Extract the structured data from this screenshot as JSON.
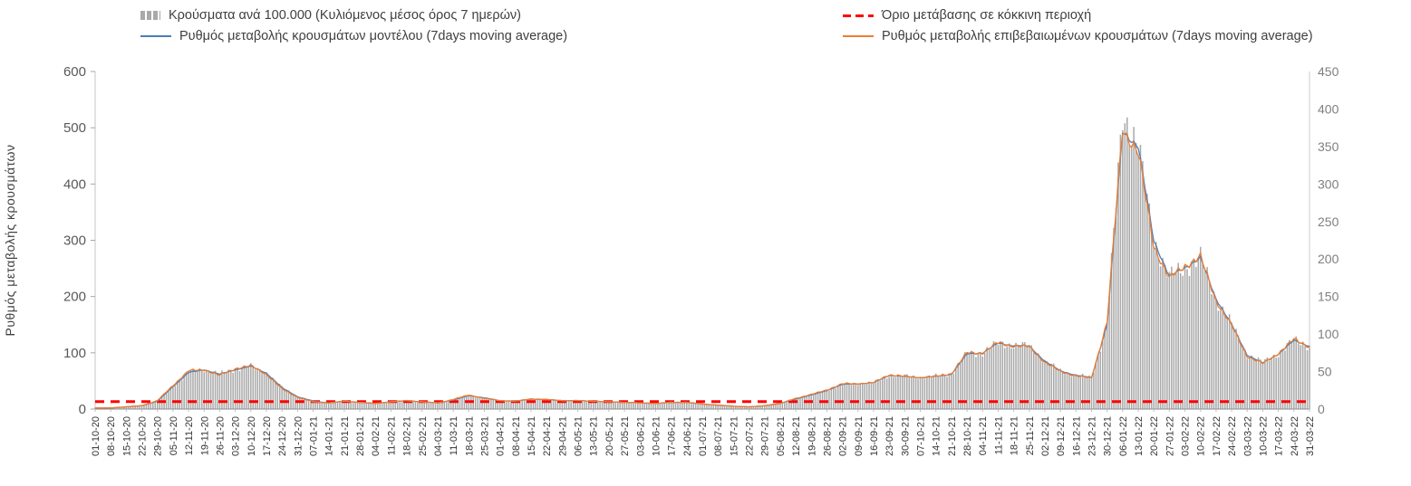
{
  "chart_data": {
    "type": "bar+line",
    "title": "",
    "y_axis_left": {
      "label": "Ρυθμός μεταβολής κρουσμάτων",
      "min": 0,
      "max": 600,
      "ticks": [
        0,
        100,
        200,
        300,
        400,
        500,
        600
      ]
    },
    "y_axis_right": {
      "min": 0,
      "max": 450,
      "ticks": [
        0,
        50,
        100,
        150,
        200,
        250,
        300,
        350,
        400,
        450
      ]
    },
    "threshold": {
      "label": "Όριο μετάβασης σε κόκκινη περιοχή",
      "value": 10,
      "axis": "right",
      "color": "#ff0000"
    },
    "categories": [
      "01-10-20",
      "08-10-20",
      "15-10-20",
      "22-10-20",
      "29-10-20",
      "05-11-20",
      "12-11-20",
      "19-11-20",
      "26-11-20",
      "03-12-20",
      "10-12-20",
      "17-12-20",
      "24-12-20",
      "31-12-20",
      "07-01-21",
      "14-01-21",
      "21-01-21",
      "28-01-21",
      "04-02-21",
      "11-02-21",
      "18-02-21",
      "25-02-21",
      "04-03-21",
      "11-03-21",
      "18-03-21",
      "25-03-21",
      "01-04-21",
      "08-04-21",
      "15-04-21",
      "22-04-21",
      "29-04-21",
      "06-05-21",
      "13-05-21",
      "20-05-21",
      "27-05-21",
      "03-06-21",
      "10-06-21",
      "17-06-21",
      "24-06-21",
      "01-07-21",
      "08-07-21",
      "15-07-21",
      "22-07-21",
      "29-07-21",
      "05-08-21",
      "12-08-21",
      "19-08-21",
      "26-08-21",
      "02-09-21",
      "09-09-21",
      "16-09-21",
      "23-09-21",
      "30-09-21",
      "07-10-21",
      "14-10-21",
      "21-10-21",
      "28-10-21",
      "04-11-21",
      "11-11-21",
      "18-11-21",
      "25-11-21",
      "02-12-21",
      "09-12-21",
      "16-12-21",
      "23-12-21",
      "30-12-21",
      "06-01-22",
      "13-01-22",
      "20-01-22",
      "27-01-22",
      "03-02-22",
      "10-02-22",
      "17-02-22",
      "24-02-22",
      "03-03-22",
      "10-03-22",
      "17-03-22",
      "24-03-22",
      "31-03-22"
    ],
    "bars": {
      "name": "Κρούσματα ανά 100.000 (Κυλιόμενος μέσος όρος 7 ημερών)",
      "axis": "right",
      "color": "#a9a9a9",
      "values": [
        2,
        2,
        3,
        5,
        11,
        30,
        49,
        53,
        47,
        53,
        57,
        48,
        29,
        17,
        11,
        8,
        11,
        9,
        8,
        10,
        11,
        10,
        8,
        12,
        18,
        15,
        11,
        11,
        14,
        13,
        11,
        11,
        11,
        10,
        9,
        8,
        8,
        9,
        9,
        7,
        5,
        4,
        3,
        5,
        8,
        14,
        19,
        25,
        33,
        34,
        35,
        45,
        44,
        42,
        44,
        47,
        74,
        75,
        88,
        85,
        84,
        64,
        51,
        45,
        42,
        113,
        395,
        350,
        225,
        176,
        189,
        201,
        147,
        113,
        72,
        62,
        74,
        92,
        84
      ]
    },
    "series": [
      {
        "name": "Ρυθμός μεταβολής κρουσμάτων μοντέλου (7days moving average)",
        "axis": "left",
        "color": "#4a7ebb",
        "values": [
          2,
          2,
          4,
          6,
          14,
          40,
          65,
          70,
          62,
          70,
          76,
          64,
          38,
          22,
          14,
          11,
          14,
          12,
          10,
          13,
          15,
          13,
          11,
          16,
          24,
          20,
          15,
          14,
          18,
          17,
          15,
          15,
          14,
          13,
          12,
          11,
          10,
          12,
          12,
          9,
          7,
          5,
          4,
          6,
          10,
          18,
          25,
          33,
          44,
          45,
          47,
          60,
          58,
          56,
          58,
          62,
          98,
          100,
          117,
          113,
          112,
          85,
          68,
          60,
          56,
          150,
          495,
          465,
          300,
          235,
          252,
          268,
          196,
          150,
          96,
          82,
          98,
          122,
          112
        ]
      },
      {
        "name": "Ρυθμός μεταβολής επιβεβαιωμένων κρουσμάτων (7days moving average)",
        "axis": "left",
        "color": "#ed7d31",
        "values": [
          2,
          2,
          4,
          6,
          15,
          42,
          68,
          70,
          60,
          72,
          77,
          62,
          36,
          21,
          13,
          11,
          14,
          12,
          10,
          13,
          15,
          13,
          11,
          17,
          25,
          19,
          15,
          14,
          18,
          17,
          15,
          15,
          14,
          13,
          12,
          11,
          10,
          12,
          12,
          9,
          7,
          5,
          4,
          6,
          10,
          19,
          26,
          34,
          45,
          45,
          47,
          61,
          58,
          56,
          58,
          63,
          100,
          100,
          118,
          112,
          111,
          83,
          67,
          59,
          55,
          155,
          500,
          455,
          290,
          232,
          255,
          270,
          193,
          148,
          94,
          81,
          99,
          124,
          111
        ]
      }
    ],
    "legend_position": "top",
    "grid": false
  }
}
